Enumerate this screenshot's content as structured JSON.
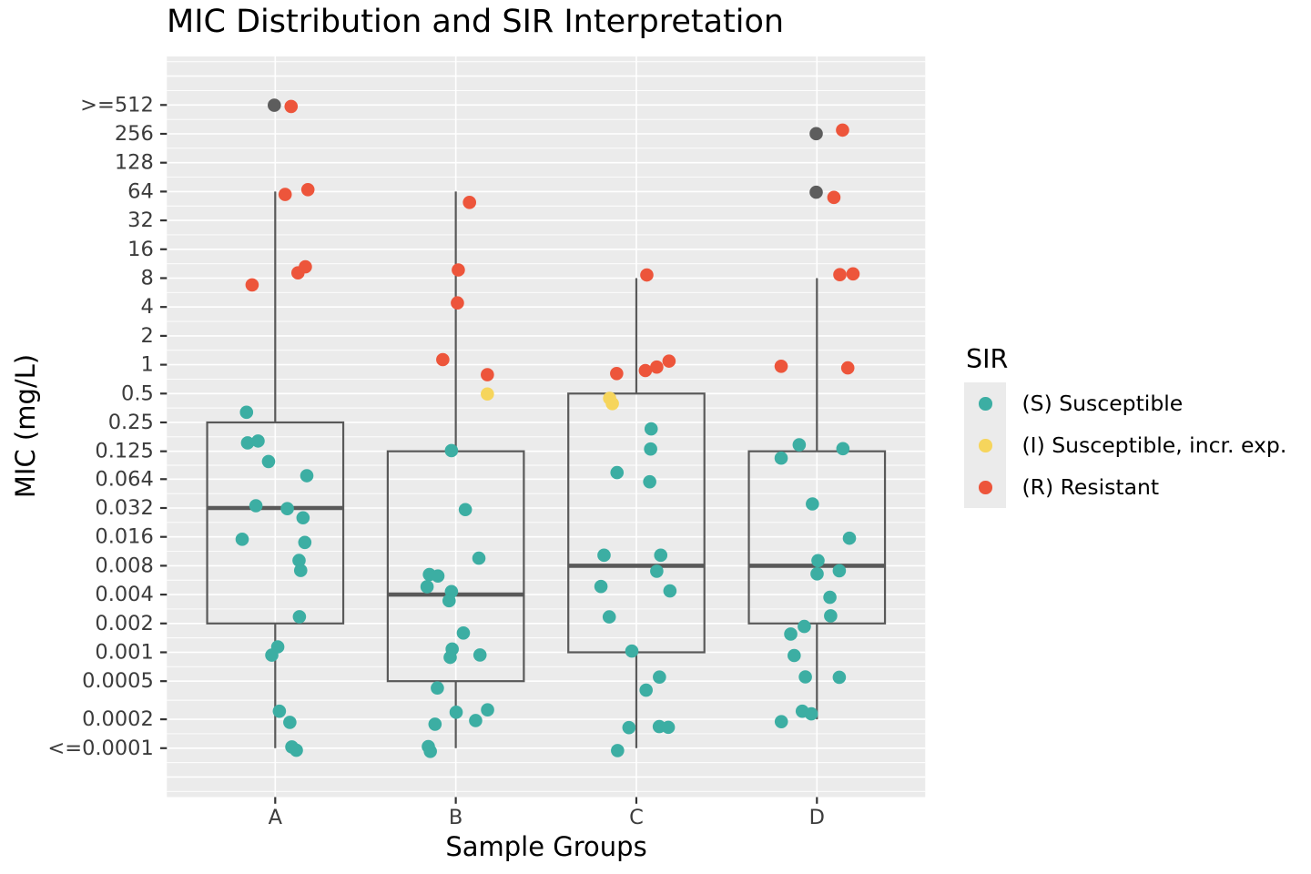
{
  "chart_data": {
    "type": "boxplot",
    "title": "MIC Distribution and SIR Interpretation",
    "xlabel": "Sample Groups",
    "ylabel": "MIC (mg/L)",
    "categories": [
      "A",
      "B",
      "C",
      "D"
    ],
    "y_tick_labels": [
      ">=512",
      "256",
      "128",
      "64",
      "32",
      "16",
      "8",
      "4",
      "2",
      "1",
      "0.5",
      "0.25",
      "0.125",
      "0.064",
      "0.032",
      "0.016",
      "0.008",
      "0.004",
      "0.002",
      "0.001",
      "0.0005",
      "0.0002",
      "<=0.0001"
    ],
    "y_tick_values": [
      512,
      256,
      128,
      64,
      32,
      16,
      8,
      4,
      2,
      1,
      0.5,
      0.25,
      0.125,
      0.064,
      0.032,
      0.016,
      0.008,
      0.004,
      0.002,
      0.001,
      0.0005,
      0.0002,
      0.0001
    ],
    "grid_major_values": [
      2048,
      1024,
      512,
      256,
      128,
      64,
      32,
      16,
      8,
      4,
      2,
      1,
      0.5,
      0.25,
      0.125,
      0.064,
      0.032,
      0.016,
      0.008,
      0.004,
      0.002,
      0.001,
      0.0005,
      0.0002,
      0.0001,
      5e-05,
      2.5e-05
    ],
    "boxes": [
      {
        "group": "A",
        "q1": 0.002,
        "median": 0.032,
        "q3": 0.25,
        "whisker_low": 0.0001,
        "whisker_high": 64
      },
      {
        "group": "B",
        "q1": 0.0005,
        "median": 0.004,
        "q3": 0.125,
        "whisker_low": 0.0001,
        "whisker_high": 64
      },
      {
        "group": "C",
        "q1": 0.001,
        "median": 0.008,
        "q3": 0.5,
        "whisker_low": 0.0001,
        "whisker_high": 8
      },
      {
        "group": "D",
        "q1": 0.002,
        "median": 0.008,
        "q3": 0.125,
        "whisker_low": 0.0002,
        "whisker_high": 8
      }
    ],
    "points": [
      {
        "group": "A",
        "x": 0.995,
        "mic": 509.0,
        "sir": "NA"
      },
      {
        "group": "A",
        "x": 1.088,
        "mic": 494.0,
        "sir": "R"
      },
      {
        "group": "A",
        "x": 1.055,
        "mic": 59.7,
        "sir": "R"
      },
      {
        "group": "A",
        "x": 1.181,
        "mic": 67.0,
        "sir": "R"
      },
      {
        "group": "A",
        "x": 1.126,
        "mic": 9.08,
        "sir": "R"
      },
      {
        "group": "A",
        "x": 1.167,
        "mic": 10.5,
        "sir": "R"
      },
      {
        "group": "A",
        "x": 0.872,
        "mic": 6.8,
        "sir": "R"
      },
      {
        "group": "A",
        "x": 0.841,
        "mic": 0.319,
        "sir": "S"
      },
      {
        "group": "A",
        "x": 0.847,
        "mic": 0.153,
        "sir": "S"
      },
      {
        "group": "A",
        "x": 0.905,
        "mic": 0.16,
        "sir": "S"
      },
      {
        "group": "A",
        "x": 0.963,
        "mic": 0.0978,
        "sir": "S"
      },
      {
        "group": "A",
        "x": 1.175,
        "mic": 0.0695,
        "sir": "S"
      },
      {
        "group": "A",
        "x": 0.893,
        "mic": 0.0338,
        "sir": "S"
      },
      {
        "group": "A",
        "x": 1.067,
        "mic": 0.0315,
        "sir": "S"
      },
      {
        "group": "A",
        "x": 1.154,
        "mic": 0.0253,
        "sir": "S"
      },
      {
        "group": "A",
        "x": 0.817,
        "mic": 0.0151,
        "sir": "S"
      },
      {
        "group": "A",
        "x": 1.164,
        "mic": 0.014,
        "sir": "S"
      },
      {
        "group": "A",
        "x": 1.132,
        "mic": 0.00908,
        "sir": "S"
      },
      {
        "group": "A",
        "x": 1.141,
        "mic": 0.00714,
        "sir": "S"
      },
      {
        "group": "A",
        "x": 1.134,
        "mic": 0.00235,
        "sir": "S"
      },
      {
        "group": "A",
        "x": 1.014,
        "mic": 0.00114,
        "sir": "S"
      },
      {
        "group": "A",
        "x": 0.981,
        "mic": 0.000934,
        "sir": "S"
      },
      {
        "group": "A",
        "x": 1.023,
        "mic": 0.000243,
        "sir": "S"
      },
      {
        "group": "A",
        "x": 1.081,
        "mic": 0.000186,
        "sir": "S"
      },
      {
        "group": "A",
        "x": 1.092,
        "mic": 0.000103,
        "sir": "S"
      },
      {
        "group": "A",
        "x": 1.117,
        "mic": 9.51e-05,
        "sir": "S"
      },
      {
        "group": "B",
        "x": 2.076,
        "mic": 49.3,
        "sir": "R"
      },
      {
        "group": "B",
        "x": 2.014,
        "mic": 9.74,
        "sir": "R"
      },
      {
        "group": "B",
        "x": 2.009,
        "mic": 4.41,
        "sir": "R"
      },
      {
        "group": "B",
        "x": 1.928,
        "mic": 1.13,
        "sir": "R"
      },
      {
        "group": "B",
        "x": 2.175,
        "mic": 0.786,
        "sir": "R"
      },
      {
        "group": "B",
        "x": 2.175,
        "mic": 0.495,
        "sir": "I"
      },
      {
        "group": "B",
        "x": 1.976,
        "mic": 0.127,
        "sir": "S"
      },
      {
        "group": "B",
        "x": 2.053,
        "mic": 0.0308,
        "sir": "S"
      },
      {
        "group": "B",
        "x": 2.128,
        "mic": 0.00959,
        "sir": "S"
      },
      {
        "group": "B",
        "x": 1.854,
        "mic": 0.00648,
        "sir": "S"
      },
      {
        "group": "B",
        "x": 1.901,
        "mic": 0.00625,
        "sir": "S"
      },
      {
        "group": "B",
        "x": 1.841,
        "mic": 0.00483,
        "sir": "S"
      },
      {
        "group": "B",
        "x": 1.976,
        "mic": 0.0043,
        "sir": "S"
      },
      {
        "group": "B",
        "x": 1.963,
        "mic": 0.00345,
        "sir": "S"
      },
      {
        "group": "B",
        "x": 2.042,
        "mic": 0.00159,
        "sir": "S"
      },
      {
        "group": "B",
        "x": 1.98,
        "mic": 0.00108,
        "sir": "S"
      },
      {
        "group": "B",
        "x": 1.969,
        "mic": 0.000886,
        "sir": "S"
      },
      {
        "group": "B",
        "x": 2.134,
        "mic": 0.000938,
        "sir": "S"
      },
      {
        "group": "B",
        "x": 1.898,
        "mic": 0.000424,
        "sir": "S"
      },
      {
        "group": "B",
        "x": 2.002,
        "mic": 0.000237,
        "sir": "S"
      },
      {
        "group": "B",
        "x": 2.176,
        "mic": 0.000251,
        "sir": "S"
      },
      {
        "group": "B",
        "x": 2.11,
        "mic": 0.000194,
        "sir": "S"
      },
      {
        "group": "B",
        "x": 1.885,
        "mic": 0.000178,
        "sir": "S"
      },
      {
        "group": "B",
        "x": 1.848,
        "mic": 0.000104,
        "sir": "S"
      },
      {
        "group": "B",
        "x": 1.859,
        "mic": 9.26e-05,
        "sir": "S"
      },
      {
        "group": "C",
        "x": 3.058,
        "mic": 8.63,
        "sir": "R"
      },
      {
        "group": "C",
        "x": 2.891,
        "mic": 0.809,
        "sir": "R"
      },
      {
        "group": "C",
        "x": 3.05,
        "mic": 0.869,
        "sir": "R"
      },
      {
        "group": "C",
        "x": 3.113,
        "mic": 0.944,
        "sir": "R"
      },
      {
        "group": "C",
        "x": 3.181,
        "mic": 1.09,
        "sir": "R"
      },
      {
        "group": "C",
        "x": 2.852,
        "mic": 0.446,
        "sir": "I"
      },
      {
        "group": "C",
        "x": 2.867,
        "mic": 0.393,
        "sir": "I"
      },
      {
        "group": "C",
        "x": 3.082,
        "mic": 0.214,
        "sir": "S"
      },
      {
        "group": "C",
        "x": 3.079,
        "mic": 0.132,
        "sir": "S"
      },
      {
        "group": "C",
        "x": 2.893,
        "mic": 0.0749,
        "sir": "S"
      },
      {
        "group": "C",
        "x": 3.074,
        "mic": 0.0601,
        "sir": "S"
      },
      {
        "group": "C",
        "x": 2.821,
        "mic": 0.0103,
        "sir": "S"
      },
      {
        "group": "C",
        "x": 3.135,
        "mic": 0.0103,
        "sir": "S"
      },
      {
        "group": "C",
        "x": 3.113,
        "mic": 0.00701,
        "sir": "S"
      },
      {
        "group": "C",
        "x": 2.804,
        "mic": 0.00486,
        "sir": "S"
      },
      {
        "group": "C",
        "x": 3.186,
        "mic": 0.00437,
        "sir": "S"
      },
      {
        "group": "C",
        "x": 2.85,
        "mic": 0.00234,
        "sir": "S"
      },
      {
        "group": "C",
        "x": 2.975,
        "mic": 0.00103,
        "sir": "S"
      },
      {
        "group": "C",
        "x": 3.128,
        "mic": 0.000552,
        "sir": "S"
      },
      {
        "group": "C",
        "x": 3.054,
        "mic": 0.000403,
        "sir": "S"
      },
      {
        "group": "C",
        "x": 2.959,
        "mic": 0.000164,
        "sir": "S"
      },
      {
        "group": "C",
        "x": 3.127,
        "mic": 0.000168,
        "sir": "S"
      },
      {
        "group": "C",
        "x": 3.177,
        "mic": 0.000165,
        "sir": "S"
      },
      {
        "group": "C",
        "x": 2.896,
        "mic": 9.44e-05,
        "sir": "S"
      },
      {
        "group": "D",
        "x": 3.996,
        "mic": 257.0,
        "sir": "NA"
      },
      {
        "group": "D",
        "x": 4.142,
        "mic": 280.0,
        "sir": "R"
      },
      {
        "group": "D",
        "x": 3.996,
        "mic": 63.0,
        "sir": "NA"
      },
      {
        "group": "D",
        "x": 4.094,
        "mic": 55.6,
        "sir": "R"
      },
      {
        "group": "D",
        "x": 4.127,
        "mic": 8.69,
        "sir": "R"
      },
      {
        "group": "D",
        "x": 4.2,
        "mic": 8.86,
        "sir": "R"
      },
      {
        "group": "D",
        "x": 3.802,
        "mic": 0.963,
        "sir": "R"
      },
      {
        "group": "D",
        "x": 4.171,
        "mic": 0.926,
        "sir": "R"
      },
      {
        "group": "D",
        "x": 3.902,
        "mic": 0.146,
        "sir": "S"
      },
      {
        "group": "D",
        "x": 4.144,
        "mic": 0.133,
        "sir": "S"
      },
      {
        "group": "D",
        "x": 3.802,
        "mic": 0.106,
        "sir": "S"
      },
      {
        "group": "D",
        "x": 3.975,
        "mic": 0.0353,
        "sir": "S"
      },
      {
        "group": "D",
        "x": 4.18,
        "mic": 0.0155,
        "sir": "S"
      },
      {
        "group": "D",
        "x": 4.006,
        "mic": 0.00904,
        "sir": "S"
      },
      {
        "group": "D",
        "x": 4.001,
        "mic": 0.00658,
        "sir": "S"
      },
      {
        "group": "D",
        "x": 4.124,
        "mic": 0.00709,
        "sir": "S"
      },
      {
        "group": "D",
        "x": 4.072,
        "mic": 0.00375,
        "sir": "S"
      },
      {
        "group": "D",
        "x": 4.076,
        "mic": 0.0024,
        "sir": "S"
      },
      {
        "group": "D",
        "x": 3.93,
        "mic": 0.00186,
        "sir": "S"
      },
      {
        "group": "D",
        "x": 3.855,
        "mic": 0.00155,
        "sir": "S"
      },
      {
        "group": "D",
        "x": 3.874,
        "mic": 0.000926,
        "sir": "S"
      },
      {
        "group": "D",
        "x": 3.936,
        "mic": 0.000554,
        "sir": "S"
      },
      {
        "group": "D",
        "x": 4.124,
        "mic": 0.000549,
        "sir": "S"
      },
      {
        "group": "D",
        "x": 3.919,
        "mic": 0.000243,
        "sir": "S"
      },
      {
        "group": "D",
        "x": 3.969,
        "mic": 0.000228,
        "sir": "S"
      },
      {
        "group": "D",
        "x": 3.803,
        "mic": 0.000189,
        "sir": "S"
      }
    ],
    "legend": {
      "title": "SIR",
      "entries": [
        {
          "code": "S",
          "label": "(S) Susceptible"
        },
        {
          "code": "I",
          "label": "(I) Susceptible, incr. exp."
        },
        {
          "code": "R",
          "label": "(R) Resistant"
        }
      ]
    },
    "colors": {
      "S": "#3CAEA3",
      "I": "#F6D55C",
      "R": "#ED553B",
      "NA": "#5D5D5D"
    },
    "panel_bg": "#EBEBEB",
    "grid_color": "#FFFFFF",
    "box_color": "#595959",
    "tick_color": "#333333",
    "tick_label_color": "#3C3C3C",
    "text_color": "#000000"
  }
}
